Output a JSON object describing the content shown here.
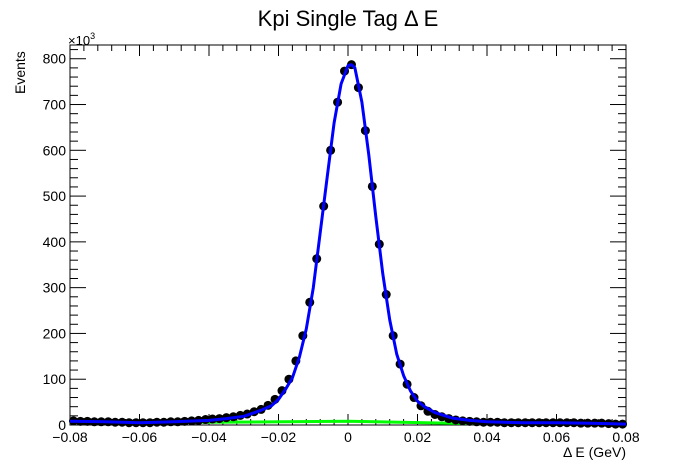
{
  "chart_data": {
    "type": "scatter",
    "title": "Kpi Single Tag Δ E",
    "xlabel": "Δ E (GeV)",
    "ylabel": "Events",
    "y_multiplier_base": "×10",
    "y_multiplier_exp": "3",
    "xlim": [
      -0.08,
      0.08
    ],
    "ylim": [
      0,
      830
    ],
    "x_ticks": [
      -0.08,
      -0.06,
      -0.04,
      -0.02,
      0,
      0.02,
      0.04,
      0.06,
      0.08
    ],
    "x_tick_labels": [
      "−0.08",
      "−0.06",
      "−0.04",
      "−0.02",
      "0",
      "0.02",
      "0.04",
      "0.06",
      "0.08"
    ],
    "y_ticks": [
      0,
      100,
      200,
      300,
      400,
      500,
      600,
      700,
      800
    ],
    "y_tick_labels": [
      "0",
      "100",
      "200",
      "300",
      "400",
      "500",
      "600",
      "700",
      "800"
    ],
    "grid": false,
    "colors": {
      "data": "#000000",
      "fit": "#0000ff",
      "background": "#00ff00",
      "axis": "#000000"
    },
    "series": [
      {
        "kind": "points",
        "x": [
          -0.079,
          -0.077,
          -0.075,
          -0.073,
          -0.071,
          -0.069,
          -0.067,
          -0.065,
          -0.063,
          -0.061,
          -0.059,
          -0.057,
          -0.055,
          -0.053,
          -0.051,
          -0.049,
          -0.047,
          -0.045,
          -0.043,
          -0.041,
          -0.039,
          -0.037,
          -0.035,
          -0.033,
          -0.031,
          -0.029,
          -0.027,
          -0.025,
          -0.023,
          -0.021,
          -0.019,
          -0.017,
          -0.015,
          -0.013,
          -0.011,
          -0.009,
          -0.007,
          -0.005,
          -0.003,
          -0.001,
          0.001,
          0.003,
          0.005,
          0.007,
          0.009,
          0.011,
          0.013,
          0.015,
          0.017,
          0.019,
          0.021,
          0.023,
          0.025,
          0.027,
          0.029,
          0.031,
          0.033,
          0.035,
          0.037,
          0.039,
          0.041,
          0.043,
          0.045,
          0.047,
          0.049,
          0.051,
          0.053,
          0.055,
          0.057,
          0.059,
          0.061,
          0.063,
          0.065,
          0.067,
          0.069,
          0.071,
          0.073,
          0.075,
          0.077,
          0.079
        ],
        "y": [
          9,
          8,
          8,
          7,
          7,
          7,
          6,
          6,
          5,
          5,
          5,
          5,
          6,
          6,
          7,
          7,
          8,
          9,
          10,
          12,
          13,
          14,
          16,
          18,
          21,
          24,
          29,
          34,
          43,
          56,
          75,
          100,
          140,
          195,
          268,
          363,
          478,
          600,
          705,
          773,
          787,
          737,
          643,
          521,
          395,
          285,
          195,
          133,
          89,
          60,
          42,
          30,
          23,
          18,
          14,
          11,
          9,
          8,
          7,
          6,
          6,
          6,
          5,
          5,
          5,
          5,
          5,
          5,
          5,
          5,
          5,
          5,
          5,
          4,
          4,
          4,
          4,
          3,
          2,
          2
        ]
      },
      {
        "kind": "line",
        "x": [
          -0.08,
          -0.07,
          -0.06,
          -0.05,
          -0.04,
          -0.035,
          -0.03,
          -0.025,
          -0.022,
          -0.02,
          -0.018,
          -0.016,
          -0.014,
          -0.012,
          -0.01,
          -0.008,
          -0.006,
          -0.004,
          -0.002,
          0,
          0.001,
          0.002,
          0.004,
          0.006,
          0.008,
          0.01,
          0.012,
          0.014,
          0.016,
          0.018,
          0.02,
          0.022,
          0.025,
          0.03,
          0.035,
          0.04,
          0.05,
          0.06,
          0.07,
          0.08
        ],
        "y": [
          8,
          7,
          5,
          7,
          10,
          14,
          19,
          32,
          42,
          56,
          78,
          103,
          148,
          210,
          300,
          420,
          540,
          660,
          745,
          785,
          787,
          780,
          705,
          590,
          455,
          330,
          230,
          155,
          108,
          74,
          52,
          40,
          27,
          15,
          10,
          7,
          5,
          5,
          4,
          2
        ]
      },
      {
        "kind": "line",
        "x": [
          -0.08,
          -0.04,
          0,
          0.03,
          0.05,
          0.08
        ],
        "y": [
          5,
          6,
          8,
          4,
          2,
          1
        ]
      }
    ]
  }
}
